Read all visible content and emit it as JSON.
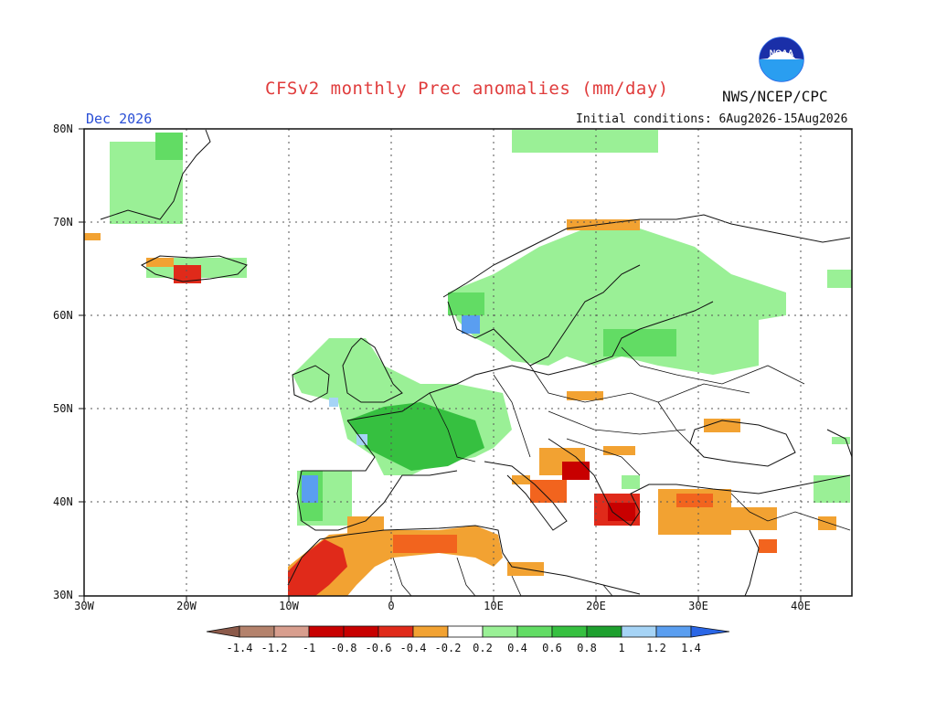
{
  "header": {
    "title": "CFSv2 monthly Prec anomalies (mm/day)",
    "agency": "NWS/NCEP/CPC",
    "month": "Dec 2026",
    "initial_conditions": "Initial conditions: 6Aug2026-15Aug2026",
    "logo_text": "NOAA"
  },
  "axes": {
    "lat_labels": [
      "80N",
      "70N",
      "60N",
      "50N",
      "40N",
      "30N"
    ],
    "lon_labels": [
      "30W",
      "20W",
      "10W",
      "0",
      "10E",
      "20E",
      "30E",
      "40E"
    ]
  },
  "colorbar": {
    "labels": [
      "-1.4",
      "-1.2",
      "-1",
      "-0.8",
      "-0.6",
      "-0.4",
      "-0.2",
      "0.2",
      "0.4",
      "0.6",
      "0.8",
      "1",
      "1.2",
      "1.4"
    ],
    "colors": [
      "#8c5a4a",
      "#b4826c",
      "#d89e8e",
      "#c80000",
      "#e02a1a",
      "#f2641e",
      "#f2a232",
      "#ffffff",
      "#9af096",
      "#62dc64",
      "#36c040",
      "#1ea02e",
      "#a6d4f6",
      "#5a9ef0",
      "#2a66e6"
    ]
  },
  "colors": {
    "title": "#e03c3c",
    "month": "#2a4fd6",
    "green_light": "#9af096",
    "green_mid": "#62dc64",
    "green_dark": "#36c040",
    "orange": "#f2a232",
    "red_orange": "#f2641e",
    "red": "#e02a1a",
    "dark_red": "#c80000",
    "blue_light": "#a6d4f6",
    "blue": "#5a9ef0"
  }
}
